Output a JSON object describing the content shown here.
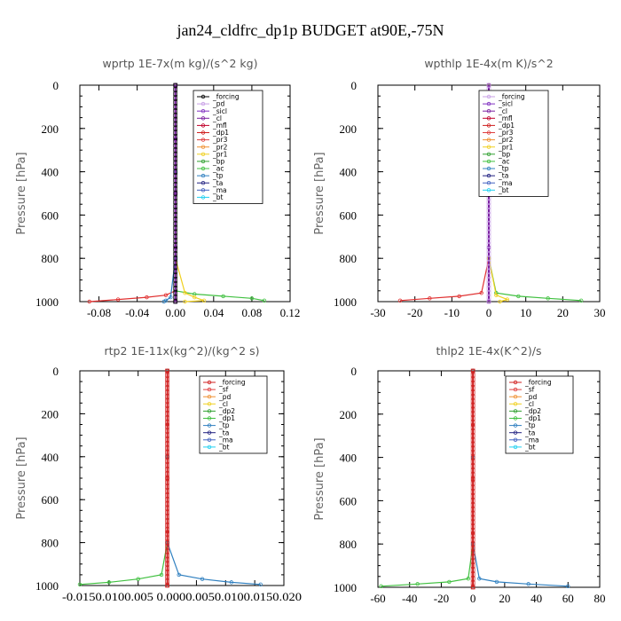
{
  "figure_title": "jan24_cldfrc_dp1p  BUDGET at90E,-75N",
  "chart_data": [
    {
      "type": "line",
      "title": "wprtp   1E-7x(m kg)/(s^2 kg)",
      "ylabel": "Pressure [hPa]",
      "xlim": [
        -0.1,
        0.12
      ],
      "ylim": [
        1000,
        0
      ],
      "xticks": [
        -0.08,
        -0.04,
        0.0,
        0.04,
        0.08,
        0.12
      ],
      "xtick_labels": [
        "-0.08",
        "-0.04",
        "0.00",
        "0.04",
        "0.08",
        "0.12"
      ],
      "yticks": [
        0,
        200,
        400,
        600,
        800,
        1000
      ],
      "legend": [
        "_forcing",
        "_pd",
        "_sicl",
        "_cl",
        "_mfl",
        "_dp1",
        "_pr3",
        "_pr2",
        "_pr1",
        "_bp",
        "_ac",
        "_tp",
        "_ta",
        "_ma",
        "_bt"
      ],
      "legend_colors": [
        "#000000",
        "#c8a0e6",
        "#8030c0",
        "#7a1fa0",
        "#c0002a",
        "#d02020",
        "#e04040",
        "#f09030",
        "#f0d020",
        "#30a030",
        "#40c040",
        "#3080c0",
        "#202080",
        "#4060c0",
        "#20d0f0"
      ],
      "series": [
        {
          "name": "_dp1",
          "color": "#e03030",
          "x": [
            0,
            0,
            0,
            0,
            -0.01,
            -0.03,
            -0.06,
            -0.09
          ],
          "y": [
            0,
            400,
            800,
            950,
            970,
            980,
            990,
            1000
          ]
        },
        {
          "name": "_ac",
          "color": "#40c040",
          "x": [
            0,
            0,
            0,
            0,
            0.02,
            0.05,
            0.08,
            0.093
          ],
          "y": [
            0,
            400,
            800,
            950,
            965,
            975,
            985,
            995
          ]
        },
        {
          "name": "_pr1",
          "color": "#f0d020",
          "x": [
            0,
            0,
            0,
            0.01,
            0.02,
            0.03,
            0.01
          ],
          "y": [
            0,
            400,
            800,
            960,
            980,
            995,
            1000
          ]
        },
        {
          "name": "_tp",
          "color": "#3080c0",
          "x": [
            0,
            0,
            0,
            -0.005,
            -0.01,
            -0.012
          ],
          "y": [
            0,
            400,
            800,
            980,
            995,
            1000
          ]
        },
        {
          "name": "_forcing",
          "color": "#000000",
          "x": [
            0,
            0,
            0,
            0,
            0
          ],
          "y": [
            0,
            250,
            500,
            750,
            1000
          ]
        },
        {
          "name": "_cl",
          "color": "#7a1fa0",
          "x": [
            0,
            0,
            0,
            0,
            0
          ],
          "y": [
            0,
            250,
            500,
            750,
            1000
          ]
        }
      ]
    },
    {
      "type": "line",
      "title": "wpthlp   1E-4x(m K)/s^2",
      "ylabel": "Pressure [hPa]",
      "xlim": [
        -30,
        30
      ],
      "ylim": [
        1000,
        0
      ],
      "xticks": [
        -30,
        -20,
        -10,
        0,
        10,
        20,
        30
      ],
      "xtick_labels": [
        "-30",
        "-20",
        "-10",
        "0",
        "10",
        "20",
        "30"
      ],
      "yticks": [
        0,
        200,
        400,
        600,
        800,
        1000
      ],
      "legend": [
        "_forcing",
        "_sicl",
        "_cl",
        "_mfl",
        "_dp1",
        "_pr3",
        "_pr2",
        "_pr1",
        "_bp",
        "_ac",
        "_tp",
        "_ta",
        "_ma",
        "_bt"
      ],
      "legend_colors": [
        "#c8a0e6",
        "#8030c0",
        "#7a1fa0",
        "#c0002a",
        "#d02020",
        "#e04040",
        "#f09030",
        "#f0d020",
        "#30a030",
        "#40c040",
        "#3080c0",
        "#202080",
        "#4060c0",
        "#20d0f0"
      ],
      "series": [
        {
          "name": "_dp1",
          "color": "#e03030",
          "x": [
            0,
            0,
            0,
            -2,
            -8,
            -16,
            -24
          ],
          "y": [
            0,
            400,
            800,
            960,
            975,
            985,
            995
          ]
        },
        {
          "name": "_ac",
          "color": "#40c040",
          "x": [
            0,
            0,
            0,
            2,
            8,
            16,
            25
          ],
          "y": [
            0,
            400,
            800,
            960,
            975,
            985,
            995
          ]
        },
        {
          "name": "_pr1",
          "color": "#f0d020",
          "x": [
            0,
            0,
            2,
            5,
            3
          ],
          "y": [
            0,
            800,
            970,
            990,
            1000
          ]
        },
        {
          "name": "_forcing",
          "color": "#c8a0e6",
          "x": [
            0,
            0,
            0,
            0,
            0
          ],
          "y": [
            0,
            250,
            500,
            750,
            1000
          ]
        },
        {
          "name": "_cl",
          "color": "#7a1fa0",
          "x": [
            0,
            0,
            0,
            0,
            0
          ],
          "y": [
            0,
            250,
            500,
            750,
            1000
          ]
        }
      ]
    },
    {
      "type": "line",
      "title": "rtp2   1E-11x(kg^2)/(kg^2 s)",
      "ylabel": "Pressure [hPa]",
      "xlim": [
        -0.015,
        0.02
      ],
      "ylim": [
        1000,
        0
      ],
      "xtick_labels_text": "-0.0150.0100.005 0.0000.0050.0100.0150.020",
      "yticks": [
        0,
        200,
        400,
        600,
        800,
        1000
      ],
      "legend": [
        "_forcing",
        "_sf",
        "_pd",
        "_cl",
        "_dp2",
        "_dp1",
        "_tp",
        "_ta",
        "_ma",
        "_bt"
      ],
      "legend_colors": [
        "#d02020",
        "#e04040",
        "#f09030",
        "#f0d020",
        "#30a030",
        "#40c040",
        "#3080c0",
        "#202080",
        "#4060c0",
        "#20d0f0"
      ],
      "series": [
        {
          "name": "_dp1",
          "color": "#40c040",
          "x": [
            0,
            0,
            0,
            -0.001,
            -0.005,
            -0.01,
            -0.015
          ],
          "y": [
            0,
            400,
            800,
            950,
            970,
            985,
            995
          ]
        },
        {
          "name": "_tp",
          "color": "#3080c0",
          "x": [
            0,
            0,
            0,
            0.002,
            0.006,
            0.011,
            0.016
          ],
          "y": [
            0,
            400,
            800,
            950,
            970,
            985,
            995
          ]
        },
        {
          "name": "_forcing",
          "color": "#d02020",
          "x": [
            0,
            0,
            0,
            0,
            0
          ],
          "y": [
            0,
            250,
            500,
            750,
            1000
          ]
        }
      ]
    },
    {
      "type": "line",
      "title": "thlp2   1E-4x(K^2)/s",
      "ylabel": "Pressure [hPa]",
      "xlim": [
        -60,
        80
      ],
      "ylim": [
        1000,
        0
      ],
      "xticks": [
        -60,
        -40,
        -20,
        0,
        20,
        40,
        60,
        80
      ],
      "xtick_labels": [
        "-60",
        "-40",
        "-20",
        "0",
        "20",
        "40",
        "60",
        "80"
      ],
      "yticks": [
        0,
        200,
        400,
        600,
        800,
        1000
      ],
      "legend": [
        "_forcing",
        "_sf",
        "_pd",
        "_cl",
        "_dp2",
        "_dp1",
        "_tp",
        "_ta",
        "_ma",
        "_bt"
      ],
      "legend_colors": [
        "#d02020",
        "#e04040",
        "#f09030",
        "#f0d020",
        "#30a030",
        "#40c040",
        "#3080c0",
        "#202080",
        "#4060c0",
        "#20d0f0"
      ],
      "series": [
        {
          "name": "_dp1",
          "color": "#40c040",
          "x": [
            0,
            0,
            0,
            -3,
            -15,
            -35,
            -58
          ],
          "y": [
            0,
            400,
            800,
            960,
            975,
            985,
            995
          ]
        },
        {
          "name": "_tp",
          "color": "#3080c0",
          "x": [
            0,
            0,
            0,
            4,
            15,
            35,
            60
          ],
          "y": [
            0,
            400,
            800,
            960,
            975,
            985,
            995
          ]
        },
        {
          "name": "_forcing",
          "color": "#d02020",
          "x": [
            0,
            0,
            0,
            0,
            0
          ],
          "y": [
            0,
            250,
            500,
            750,
            1000
          ]
        }
      ]
    }
  ]
}
